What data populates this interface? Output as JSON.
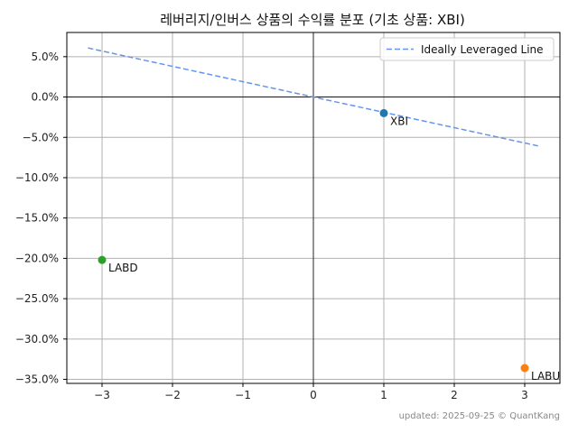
{
  "chart_data": {
    "type": "scatter",
    "title": "레버리지/인버스 상품의 수익률 분포 (기초 상품: XBI)",
    "xlabel": "",
    "ylabel": "",
    "xlim": [
      -3.5,
      3.5
    ],
    "ylim": [
      -35.5,
      8.0
    ],
    "x_ticks": [
      -3,
      -2,
      -1,
      0,
      1,
      2,
      3
    ],
    "x_tick_labels": [
      "−3",
      "−2",
      "−1",
      "0",
      "1",
      "2",
      "3"
    ],
    "y_ticks": [
      5,
      0,
      -5,
      -10,
      -15,
      -20,
      -25,
      -30,
      -35
    ],
    "y_tick_labels": [
      "5.0%",
      "0.0%",
      "−5.0%",
      "−10.0%",
      "−15.0%",
      "−20.0%",
      "−25.0%",
      "−30.0%",
      "−35.0%"
    ],
    "grid": true,
    "legend_position": "top-right",
    "points": [
      {
        "label": "XBI",
        "x": 1,
        "y": -2.0,
        "color": "#1f77b4"
      },
      {
        "label": "LABD",
        "x": -3,
        "y": -20.2,
        "color": "#2ca02c"
      },
      {
        "label": "LABU",
        "x": 3,
        "y": -33.6,
        "color": "#ff7f0e"
      }
    ],
    "reference_line": {
      "name": "Ideally Leveraged Line",
      "slope": -1.9,
      "x_range": [
        -3.2,
        3.2
      ],
      "color": "#6495ed",
      "style": "dashed"
    }
  },
  "footer": "updated: 2025-09-25 © QuantKang"
}
